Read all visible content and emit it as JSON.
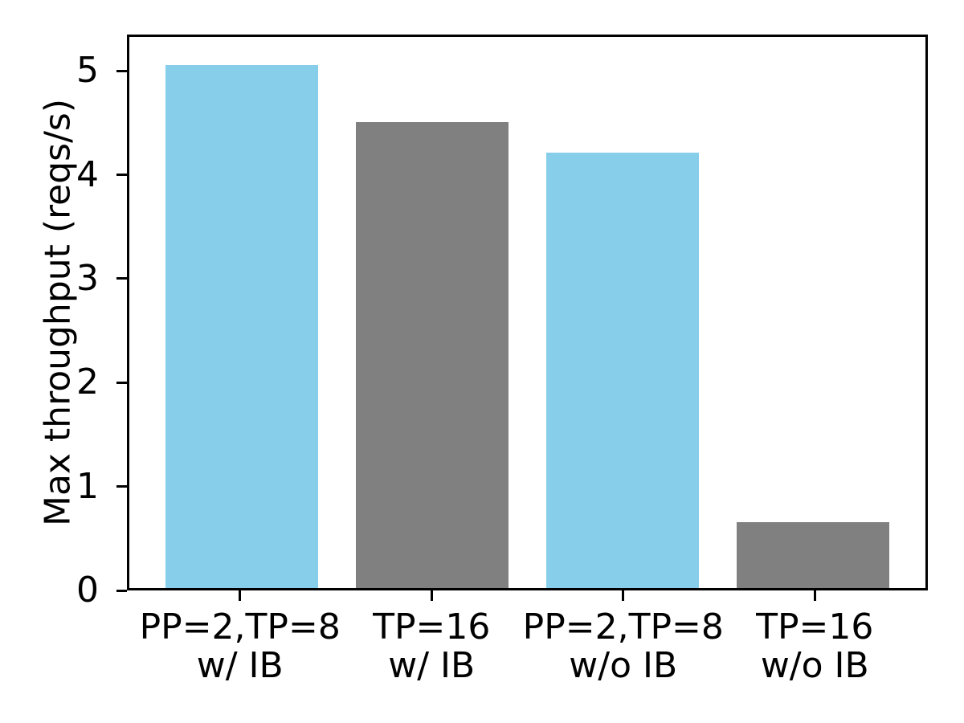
{
  "figure": {
    "background": "#ffffff",
    "axis_color": "#000000"
  },
  "chart_data": {
    "type": "bar",
    "categories": [
      "PP=2,TP=8\nw/ IB",
      "TP=16\nw/ IB",
      "PP=2,TP=8\nw/o IB",
      "TP=16\nw/o IB"
    ],
    "values": [
      5.08,
      4.52,
      4.23,
      0.64
    ],
    "bar_colors": [
      "#87CEEB",
      "#808080",
      "#87CEEB",
      "#808080"
    ],
    "ylabel": "Max throughput (reqs/s)",
    "yticks": [
      0,
      1,
      2,
      3,
      4,
      5
    ],
    "ylim": [
      0,
      5.35
    ],
    "xlim": [
      -0.59,
      3.59
    ],
    "bar_width": 0.8,
    "grid": false,
    "legend_position": "none"
  }
}
